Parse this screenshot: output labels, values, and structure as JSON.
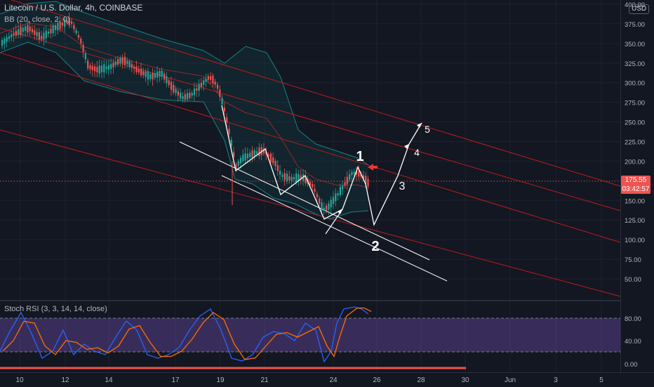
{
  "header": {
    "symbol_title": "Litecoin / U.S. Dollar, 4h, COINBASE",
    "indicator": "BB (20, close, 2, 0)",
    "currency": "USD"
  },
  "rsi_panel": {
    "title": "Stoch RSI (3, 3, 14, 14, close)",
    "levels": [
      "80.00",
      "40.00",
      "0.00"
    ]
  },
  "price_tag": {
    "price": "175.55",
    "countdown": "03:42:57"
  },
  "price_axis_labels": [
    "400.00",
    "375.00",
    "350.00",
    "325.00",
    "300.00",
    "275.00",
    "250.00",
    "225.00",
    "200.00",
    "150.00",
    "125.00",
    "100.00",
    "75.00",
    "50.00"
  ],
  "time_axis_labels": [
    "10",
    "12",
    "14",
    "17",
    "19",
    "21",
    "24",
    "26",
    "28",
    "30",
    "Jun",
    "3",
    "5"
  ],
  "wave_labels": [
    "1",
    "2",
    "3",
    "4",
    "5"
  ],
  "colors": {
    "background": "#131722",
    "up": "#26a69a",
    "down": "#ef5350",
    "channel": "#b71c1c",
    "bb": "#138484",
    "rsi_band": "#7e57c2",
    "price_tag": "#ef5350"
  }
}
